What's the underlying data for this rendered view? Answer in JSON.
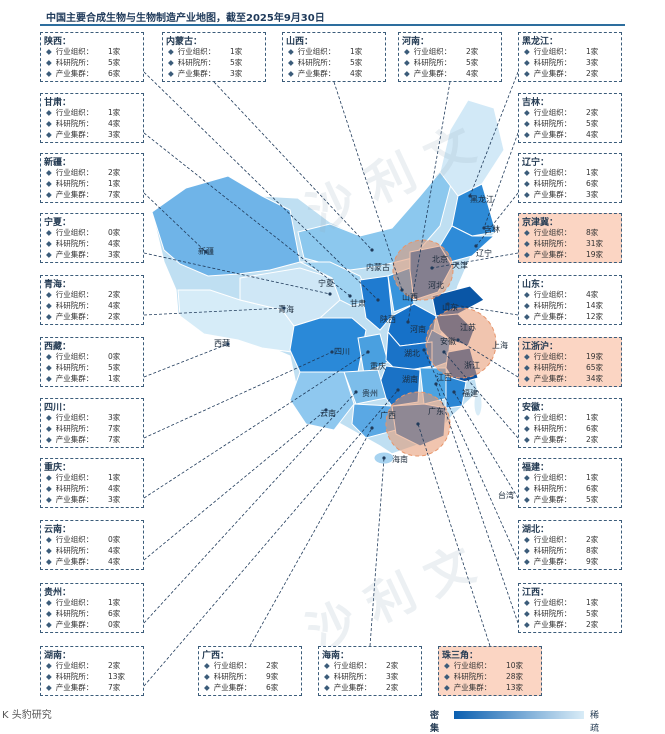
{
  "title": "中国主要合成生物与生物制造产业地图，截至2025年9月30日",
  "row_labels": {
    "org": "行业组织：",
    "lab": "科研院所：",
    "cluster": "产业集群："
  },
  "colors": {
    "accent": "#2d6e9e",
    "highlight": "#fbd5c3",
    "dense": "#0b5fb0",
    "sparse": "#d9ecf7"
  },
  "provinces": [
    {
      "name": "陕西：",
      "org": "1家",
      "lab": "5家",
      "cluster": "6家",
      "highlight": false
    },
    {
      "name": "内蒙古：",
      "org": "1家",
      "lab": "5家",
      "cluster": "3家",
      "highlight": false
    },
    {
      "name": "山西：",
      "org": "1家",
      "lab": "5家",
      "cluster": "4家",
      "highlight": false
    },
    {
      "name": "河南：",
      "org": "2家",
      "lab": "5家",
      "cluster": "4家",
      "highlight": false
    },
    {
      "name": "黑龙江：",
      "org": "1家",
      "lab": "3家",
      "cluster": "2家",
      "highlight": false
    },
    {
      "name": "甘肃：",
      "org": "1家",
      "lab": "4家",
      "cluster": "3家",
      "highlight": false
    },
    {
      "name": "吉林：",
      "org": "2家",
      "lab": "5家",
      "cluster": "4家",
      "highlight": false
    },
    {
      "name": "新疆：",
      "org": "2家",
      "lab": "1家",
      "cluster": "7家",
      "highlight": false
    },
    {
      "name": "辽宁：",
      "org": "1家",
      "lab": "6家",
      "cluster": "3家",
      "highlight": false
    },
    {
      "name": "宁夏：",
      "org": "0家",
      "lab": "4家",
      "cluster": "3家",
      "highlight": false
    },
    {
      "name": "京津冀：",
      "org": "8家",
      "lab": "31家",
      "cluster": "19家",
      "highlight": true
    },
    {
      "name": "青海：",
      "org": "2家",
      "lab": "4家",
      "cluster": "2家",
      "highlight": false
    },
    {
      "name": "山东：",
      "org": "4家",
      "lab": "14家",
      "cluster": "12家",
      "highlight": false
    },
    {
      "name": "西藏：",
      "org": "0家",
      "lab": "5家",
      "cluster": "1家",
      "highlight": false
    },
    {
      "name": "江浙沪：",
      "org": "19家",
      "lab": "65家",
      "cluster": "34家",
      "highlight": true
    },
    {
      "name": "四川：",
      "org": "3家",
      "lab": "7家",
      "cluster": "7家",
      "highlight": false
    },
    {
      "name": "安徽：",
      "org": "1家",
      "lab": "6家",
      "cluster": "2家",
      "highlight": false
    },
    {
      "name": "重庆：",
      "org": "1家",
      "lab": "4家",
      "cluster": "3家",
      "highlight": false
    },
    {
      "name": "福建：",
      "org": "1家",
      "lab": "6家",
      "cluster": "5家",
      "highlight": false
    },
    {
      "name": "云南：",
      "org": "0家",
      "lab": "4家",
      "cluster": "4家",
      "highlight": false
    },
    {
      "name": "湖北：",
      "org": "2家",
      "lab": "8家",
      "cluster": "9家",
      "highlight": false
    },
    {
      "name": "贵州：",
      "org": "1家",
      "lab": "6家",
      "cluster": "0家",
      "highlight": false
    },
    {
      "name": "江西：",
      "org": "1家",
      "lab": "5家",
      "cluster": "2家",
      "highlight": false
    },
    {
      "name": "湖南：",
      "org": "2家",
      "lab": "13家",
      "cluster": "7家",
      "highlight": false
    },
    {
      "name": "广西：",
      "org": "2家",
      "lab": "9家",
      "cluster": "6家",
      "highlight": false
    },
    {
      "name": "海南：",
      "org": "2家",
      "lab": "3家",
      "cluster": "2家",
      "highlight": false
    },
    {
      "name": "珠三角：",
      "org": "10家",
      "lab": "28家",
      "cluster": "13家",
      "highlight": true
    }
  ],
  "map_labels": [
    "新疆",
    "西藏",
    "青海",
    "甘肃",
    "宁夏",
    "内蒙古",
    "陕西",
    "四川",
    "重庆",
    "云南",
    "贵州",
    "广西",
    "湖北",
    "湖南",
    "河南",
    "山西",
    "河北",
    "北京",
    "天津",
    "山东",
    "安徽",
    "江苏",
    "上海",
    "浙江",
    "江西",
    "福建",
    "海南",
    "辽宁",
    "吉林",
    "黑龙江",
    "广东",
    "台湾"
  ],
  "legend": {
    "dense": "密集",
    "sparse": "稀疏"
  },
  "source": "K 头豹研究"
}
